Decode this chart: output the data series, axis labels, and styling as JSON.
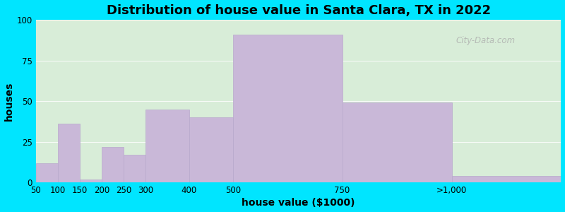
{
  "title": "Distribution of house value in Santa Clara, TX in 2022",
  "xlabel": "house value ($1000)",
  "ylabel": "houses",
  "bar_color": "#c9b8d8",
  "bar_edgecolor": "#b8a8cc",
  "bin_edges": [
    50,
    100,
    150,
    200,
    250,
    300,
    400,
    500,
    750,
    1000,
    1250
  ],
  "values": [
    12,
    36,
    2,
    22,
    17,
    45,
    40,
    91,
    49,
    4
  ],
  "tick_positions": [
    50,
    100,
    150,
    200,
    250,
    300,
    400,
    500,
    750,
    1000
  ],
  "tick_labels": [
    "50",
    "100",
    "150",
    "200",
    "250",
    "300",
    "400",
    "500",
    "750",
    ">1,000"
  ],
  "ylim": [
    0,
    100
  ],
  "yticks": [
    0,
    25,
    50,
    75,
    100
  ],
  "bg_outer": "#00e5ff",
  "bg_plot": "#d8edd8",
  "title_fontsize": 13,
  "axis_label_fontsize": 10,
  "tick_fontsize": 8.5,
  "watermark_text": "City-Data.com",
  "watermark_color": "#aaaaaa"
}
